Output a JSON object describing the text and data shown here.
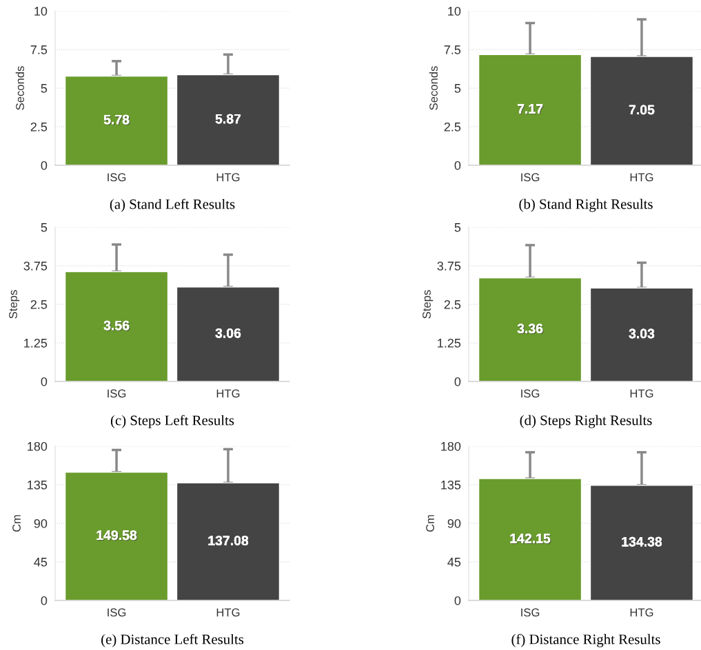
{
  "chart_data": [
    {
      "type": "bar",
      "title": "(a) Stand Left Results",
      "ylabel": "Seconds",
      "categories": [
        "ISG",
        "HTG"
      ],
      "values": [
        5.78,
        5.87
      ],
      "colors": [
        "#699c2c",
        "#444444"
      ],
      "errors": [
        [
          5.78,
          6.75
        ],
        [
          5.87,
          7.18
        ]
      ],
      "ylim": [
        0,
        10
      ],
      "yticks": [
        0,
        2.5,
        5,
        7.5,
        10
      ],
      "grid": "y",
      "data_labels": true
    },
    {
      "type": "bar",
      "title": "(b) Stand Right Results",
      "ylabel": "Seconds",
      "categories": [
        "ISG",
        "HTG"
      ],
      "values": [
        7.17,
        7.05
      ],
      "colors": [
        "#699c2c",
        "#444444"
      ],
      "errors": [
        [
          7.17,
          9.22
        ],
        [
          7.05,
          9.46
        ]
      ],
      "ylim": [
        0,
        10
      ],
      "yticks": [
        0,
        2.5,
        5,
        7.5,
        10
      ],
      "grid": "y",
      "data_labels": true
    },
    {
      "type": "bar",
      "title": "(c) Steps Left Results",
      "ylabel": "Steps",
      "categories": [
        "ISG",
        "HTG"
      ],
      "values": [
        3.56,
        3.06
      ],
      "colors": [
        "#699c2c",
        "#444444"
      ],
      "errors": [
        [
          3.56,
          4.44
        ],
        [
          3.06,
          4.11
        ]
      ],
      "ylim": [
        0,
        5
      ],
      "yticks": [
        0,
        1.25,
        2.5,
        3.75,
        5
      ],
      "grid": "y",
      "data_labels": true
    },
    {
      "type": "bar",
      "title": "(d) Steps Right Results",
      "ylabel": "Steps",
      "categories": [
        "ISG",
        "HTG"
      ],
      "values": [
        3.36,
        3.03
      ],
      "colors": [
        "#699c2c",
        "#444444"
      ],
      "errors": [
        [
          3.36,
          4.42
        ],
        [
          3.03,
          3.85
        ]
      ],
      "ylim": [
        0,
        5
      ],
      "yticks": [
        0,
        1.25,
        2.5,
        3.75,
        5
      ],
      "grid": "y",
      "data_labels": true
    },
    {
      "type": "bar",
      "title": "(e) Distance Left Results",
      "ylabel": "Cm",
      "categories": [
        "ISG",
        "HTG"
      ],
      "values": [
        149.58,
        137.08
      ],
      "colors": [
        "#699c2c",
        "#444444"
      ],
      "errors": [
        [
          149.58,
          175.6
        ],
        [
          137.08,
          176.5
        ]
      ],
      "ylim": [
        0,
        180
      ],
      "yticks": [
        0,
        45,
        90,
        135,
        180
      ],
      "grid": "y",
      "data_labels": true
    },
    {
      "type": "bar",
      "title": "(f) Distance Right Results",
      "ylabel": "Cm",
      "categories": [
        "ISG",
        "HTG"
      ],
      "values": [
        142.15,
        134.38
      ],
      "colors": [
        "#699c2c",
        "#444444"
      ],
      "errors": [
        [
          142.15,
          172.9
        ],
        [
          134.38,
          172.9
        ]
      ],
      "ylim": [
        0,
        180
      ],
      "yticks": [
        0,
        45,
        90,
        135,
        180
      ],
      "grid": "y",
      "data_labels": true
    }
  ]
}
